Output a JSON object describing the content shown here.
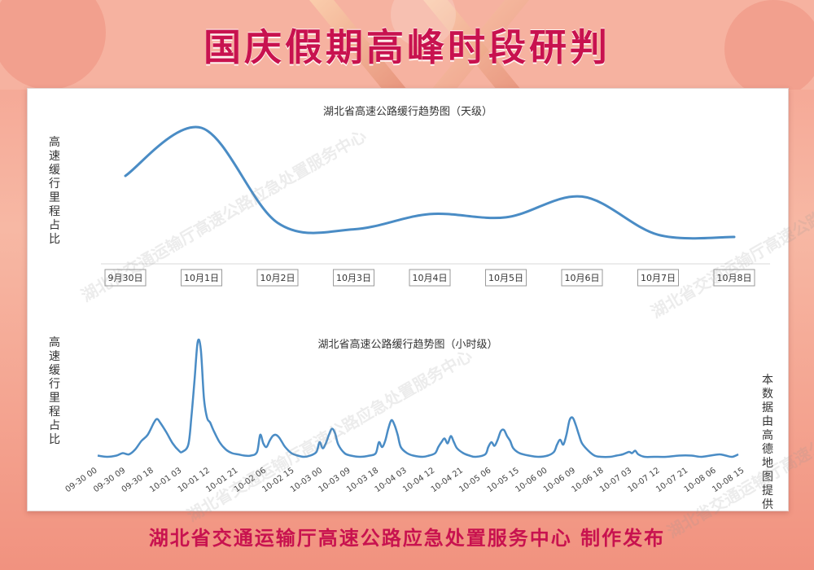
{
  "banner": {
    "title": "国庆假期高峰时段研判"
  },
  "footer": {
    "text": "湖北省交通运输厅高速公路应急处置服务中心  制作发布"
  },
  "watermark_text": "湖北省交通运输厅高速公路应急处置服务中心",
  "side_note": "本数据由高德地图提供",
  "colors": {
    "title": "#c8124f",
    "line": "#4a8cc5",
    "background": "#f4a08f"
  },
  "chart_data": [
    {
      "type": "line",
      "title": "湖北省高速公路缓行趋势图（天级）",
      "ylabel": "高速缓行里程占比",
      "x": [
        "9月30日",
        "10月1日",
        "10月2日",
        "10月3日",
        "10月4日",
        "10月5日",
        "10月6日",
        "10月7日",
        "10月8日"
      ],
      "y_raw": [
        0.56,
        1.0,
        0.13,
        0.07,
        0.21,
        0.18,
        0.37,
        0.02,
        0.0
      ],
      "ylim": [
        0,
        1
      ],
      "grid": false
    },
    {
      "type": "line",
      "title": "湖北省高速公路缓行趋势图（小时级）",
      "ylabel": "高速缓行里程占比",
      "x_ticks": [
        "09-30 00",
        "09-30 09",
        "09-30 18",
        "10-01 03",
        "10-01 12",
        "10-01 21",
        "10-02 06",
        "10-02 15",
        "10-03 00",
        "10-03 09",
        "10-03 18",
        "10-04 03",
        "10-04 12",
        "10-04 21",
        "10-05 06",
        "10-05 15",
        "10-06 00",
        "10-06 09",
        "10-06 18",
        "10-07 03",
        "10-07 12",
        "10-07 21",
        "10-08 06",
        "10-08 15"
      ],
      "x_tick_hours": [
        0,
        9,
        18,
        27,
        36,
        45,
        54,
        63,
        72,
        81,
        90,
        99,
        108,
        117,
        126,
        135,
        144,
        153,
        162,
        171,
        180,
        189,
        198,
        207
      ],
      "points": [
        [
          0,
          0.03
        ],
        [
          3,
          0.02
        ],
        [
          6,
          0.03
        ],
        [
          8,
          0.05
        ],
        [
          10,
          0.04
        ],
        [
          12,
          0.08
        ],
        [
          14,
          0.15
        ],
        [
          16,
          0.2
        ],
        [
          18,
          0.3
        ],
        [
          19,
          0.33
        ],
        [
          20,
          0.3
        ],
        [
          22,
          0.22
        ],
        [
          24,
          0.13
        ],
        [
          26,
          0.07
        ],
        [
          27,
          0.06
        ],
        [
          29,
          0.12
        ],
        [
          30,
          0.35
        ],
        [
          31,
          0.65
        ],
        [
          32,
          0.96
        ],
        [
          33,
          0.9
        ],
        [
          34,
          0.5
        ],
        [
          35,
          0.34
        ],
        [
          36,
          0.3
        ],
        [
          37,
          0.24
        ],
        [
          39,
          0.14
        ],
        [
          41,
          0.08
        ],
        [
          43,
          0.05
        ],
        [
          45,
          0.04
        ],
        [
          47,
          0.03
        ],
        [
          49,
          0.03
        ],
        [
          51,
          0.06
        ],
        [
          52,
          0.2
        ],
        [
          53,
          0.13
        ],
        [
          54,
          0.1
        ],
        [
          55,
          0.15
        ],
        [
          56,
          0.19
        ],
        [
          57,
          0.2
        ],
        [
          58,
          0.18
        ],
        [
          59,
          0.14
        ],
        [
          60,
          0.1
        ],
        [
          62,
          0.05
        ],
        [
          64,
          0.03
        ],
        [
          66,
          0.02
        ],
        [
          68,
          0.03
        ],
        [
          70,
          0.06
        ],
        [
          71,
          0.14
        ],
        [
          72,
          0.09
        ],
        [
          73,
          0.13
        ],
        [
          74,
          0.2
        ],
        [
          75,
          0.25
        ],
        [
          76,
          0.21
        ],
        [
          77,
          0.12
        ],
        [
          79,
          0.05
        ],
        [
          81,
          0.03
        ],
        [
          84,
          0.02
        ],
        [
          87,
          0.03
        ],
        [
          89,
          0.05
        ],
        [
          90,
          0.14
        ],
        [
          91,
          0.1
        ],
        [
          92,
          0.15
        ],
        [
          93,
          0.25
        ],
        [
          94,
          0.32
        ],
        [
          95,
          0.28
        ],
        [
          96,
          0.2
        ],
        [
          97,
          0.1
        ],
        [
          99,
          0.05
        ],
        [
          101,
          0.03
        ],
        [
          104,
          0.02
        ],
        [
          106,
          0.03
        ],
        [
          108,
          0.05
        ],
        [
          109,
          0.1
        ],
        [
          110,
          0.14
        ],
        [
          111,
          0.17
        ],
        [
          112,
          0.13
        ],
        [
          113,
          0.19
        ],
        [
          114,
          0.14
        ],
        [
          115,
          0.09
        ],
        [
          117,
          0.05
        ],
        [
          119,
          0.03
        ],
        [
          121,
          0.02
        ],
        [
          124,
          0.04
        ],
        [
          125,
          0.1
        ],
        [
          126,
          0.14
        ],
        [
          127,
          0.11
        ],
        [
          128,
          0.16
        ],
        [
          129,
          0.23
        ],
        [
          130,
          0.24
        ],
        [
          131,
          0.19
        ],
        [
          132,
          0.15
        ],
        [
          133,
          0.09
        ],
        [
          135,
          0.05
        ],
        [
          138,
          0.03
        ],
        [
          141,
          0.02
        ],
        [
          144,
          0.03
        ],
        [
          146,
          0.06
        ],
        [
          147,
          0.12
        ],
        [
          148,
          0.16
        ],
        [
          149,
          0.12
        ],
        [
          150,
          0.2
        ],
        [
          151,
          0.32
        ],
        [
          152,
          0.34
        ],
        [
          153,
          0.28
        ],
        [
          154,
          0.2
        ],
        [
          155,
          0.13
        ],
        [
          157,
          0.07
        ],
        [
          159,
          0.03
        ],
        [
          161,
          0.02
        ],
        [
          164,
          0.02
        ],
        [
          166,
          0.03
        ],
        [
          168,
          0.04
        ],
        [
          170,
          0.06
        ],
        [
          171,
          0.05
        ],
        [
          172,
          0.07
        ],
        [
          173,
          0.04
        ],
        [
          175,
          0.02
        ],
        [
          178,
          0.02
        ],
        [
          182,
          0.02
        ],
        [
          186,
          0.03
        ],
        [
          190,
          0.03
        ],
        [
          193,
          0.02
        ],
        [
          196,
          0.03
        ],
        [
          199,
          0.04
        ],
        [
          201,
          0.03
        ],
        [
          203,
          0.02
        ],
        [
          205,
          0.04
        ]
      ],
      "ylim": [
        0,
        1
      ],
      "grid": false
    }
  ]
}
